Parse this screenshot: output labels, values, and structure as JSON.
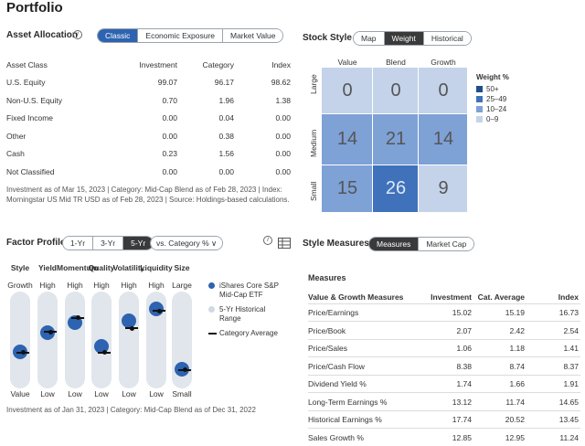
{
  "title": "Portfolio",
  "asset_allocation": {
    "heading": "Asset Allocation",
    "tabs": [
      "Classic",
      "Economic Exposure",
      "Market Value"
    ],
    "active_tab": "Classic",
    "columns": [
      "Asset Class",
      "Investment",
      "Category",
      "Index"
    ],
    "rows": [
      [
        "U.S. Equity",
        "99.07",
        "96.17",
        "98.62"
      ],
      [
        "Non-U.S. Equity",
        "0.70",
        "1.96",
        "1.38"
      ],
      [
        "Fixed Income",
        "0.00",
        "0.04",
        "0.00"
      ],
      [
        "Other",
        "0.00",
        "0.38",
        "0.00"
      ],
      [
        "Cash",
        "0.23",
        "1.56",
        "0.00"
      ],
      [
        "Not Classified",
        "0.00",
        "0.00",
        "0.00"
      ]
    ],
    "footnote_1": "Investment as of Mar 15, 2023 | Category: Mid-Cap Blend as of Feb 28, 2023 | Index:",
    "footnote_2": "Morningstar US Mid TR USD as of Feb 28, 2023 | Source: Holdings-based calculations."
  },
  "stock_style": {
    "heading": "Stock Style",
    "tabs": [
      "Map",
      "Weight",
      "Historical"
    ],
    "active_tab": "Weight",
    "columns": [
      "Value",
      "Blend",
      "Growth"
    ],
    "rows": [
      "Large",
      "Medium",
      "Small"
    ],
    "grid": [
      [
        "0",
        "0",
        "0"
      ],
      [
        "14",
        "21",
        "14"
      ],
      [
        "15",
        "26",
        "9"
      ]
    ],
    "legend_title": "Weight %",
    "legend": [
      {
        "label": "50+",
        "color": "#1f4e8c"
      },
      {
        "label": "25–49",
        "color": "#3f72bb"
      },
      {
        "label": "10–24",
        "color": "#7ea1d6"
      },
      {
        "label": "0–9",
        "color": "#c4d3ea"
      }
    ]
  },
  "factor_profile": {
    "heading": "Factor Profile",
    "tabs": [
      "1-Yr",
      "3-Yr",
      "5-Yr"
    ],
    "active_tab": "5-Yr",
    "dropdown": "vs. Category %",
    "factors": [
      {
        "name": "Style",
        "top": "Growth",
        "bottom": "Value",
        "value": 0.38,
        "avg": 0.38
      },
      {
        "name": "Yield",
        "top": "High",
        "bottom": "Low",
        "value": 0.58,
        "avg": 0.59
      },
      {
        "name": "Momentum",
        "top": "High",
        "bottom": "Low",
        "value": 0.68,
        "avg": 0.74
      },
      {
        "name": "Quality",
        "top": "High",
        "bottom": "Low",
        "value": 0.43,
        "avg": 0.38
      },
      {
        "name": "Volatility",
        "top": "High",
        "bottom": "Low",
        "value": 0.7,
        "avg": 0.63
      },
      {
        "name": "Liquidity",
        "top": "High",
        "bottom": "Low",
        "value": 0.82,
        "avg": 0.81
      },
      {
        "name": "Size",
        "top": "Large",
        "bottom": "Small",
        "value": 0.2,
        "avg": 0.2
      }
    ],
    "legend": [
      "iShares Core S&P Mid-Cap ETF",
      "5-Yr Historical Range",
      "Category Average"
    ],
    "footnote": "Investment as of Jan 31, 2023 | Category: Mid-Cap Blend as of Dec 31, 2022"
  },
  "style_measures": {
    "heading": "Style Measures",
    "tabs": [
      "Measures",
      "Market Cap"
    ],
    "active_tab": "Measures",
    "subheading": "Measures",
    "columns": [
      "Value & Growth Measures",
      "Investment",
      "Cat. Average",
      "Index"
    ],
    "rows": [
      [
        "Price/Earnings",
        "15.02",
        "15.19",
        "16.73"
      ],
      [
        "Price/Book",
        "2.07",
        "2.42",
        "2.54"
      ],
      [
        "Price/Sales",
        "1.06",
        "1.18",
        "1.41"
      ],
      [
        "Price/Cash Flow",
        "8.38",
        "8.74",
        "8.37"
      ],
      [
        "Dividend Yield %",
        "1.74",
        "1.66",
        "1.91"
      ],
      [
        "Long-Term Earnings %",
        "13.12",
        "11.74",
        "14.65"
      ],
      [
        "Historical Earnings %",
        "17.74",
        "20.52",
        "13.45"
      ],
      [
        "Sales Growth %",
        "12.85",
        "12.95",
        "11.24"
      ]
    ]
  }
}
